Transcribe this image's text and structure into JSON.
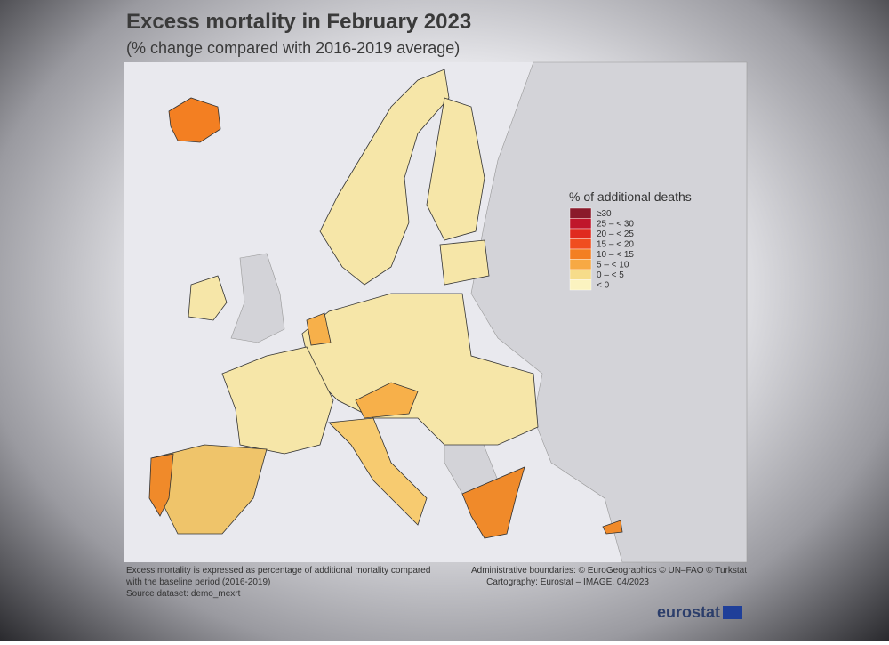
{
  "header": {
    "title": "Excess mortality in February 2023",
    "subtitle": "(% change compared with 2016-2019 average)"
  },
  "legend": {
    "title": "% of additional deaths",
    "items": [
      {
        "label": "≥30",
        "color": "#8b1a2b"
      },
      {
        "label": "25 – < 30",
        "color": "#c0162b"
      },
      {
        "label": "20 – < 25",
        "color": "#e02a1f"
      },
      {
        "label": "15 – < 20",
        "color": "#f04e1f"
      },
      {
        "label": "10 – < 15",
        "color": "#f37f22"
      },
      {
        "label": "5 – < 10",
        "color": "#f7a944"
      },
      {
        "label": "0 – < 5",
        "color": "#f6dc8a"
      },
      {
        "label": "< 0",
        "color": "#fbf3c0"
      }
    ]
  },
  "footer": {
    "notes": [
      "Excess mortality is expressed as percentage of additional mortality compared",
      "with the baseline period (2016-2019)",
      "Source dataset: demo_mexrt"
    ],
    "credits": [
      "Administrative boundaries: © EuroGeographics © UN–FAO © Turkstat",
      "Cartography: Eurostat – IMAGE, 04/2023"
    ],
    "logo": "eurostat"
  }
}
